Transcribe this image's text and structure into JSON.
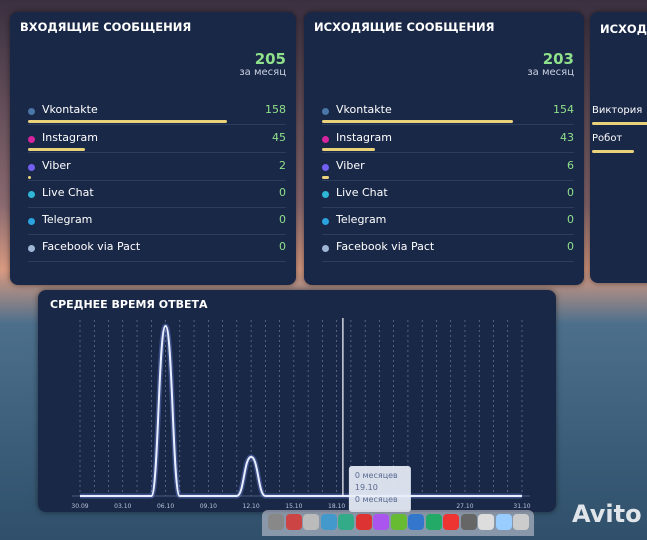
{
  "panels": [
    {
      "title": "ВХОДЯЩИЕ СООБЩЕНИЯ",
      "total": 205,
      "total_label": "за месяц",
      "channels": [
        {
          "name": "Vkontakte",
          "value": 158,
          "color": "#4a76a8"
        },
        {
          "name": "Instagram",
          "value": 45,
          "color": "#d6249f"
        },
        {
          "name": "Viber",
          "value": 2,
          "color": "#7360f2"
        },
        {
          "name": "Live Chat",
          "value": 0,
          "color": "#2fb5d6"
        },
        {
          "name": "Telegram",
          "value": 0,
          "color": "#2aa3de"
        },
        {
          "name": "Facebook via Pact",
          "value": 0,
          "color": "#9fb6d6"
        }
      ]
    },
    {
      "title": "ИСХОДЯЩИЕ СООБЩЕНИЯ",
      "total": 203,
      "total_label": "за месяц",
      "channels": [
        {
          "name": "Vkontakte",
          "value": 154,
          "color": "#4a76a8"
        },
        {
          "name": "Instagram",
          "value": 43,
          "color": "#d6249f"
        },
        {
          "name": "Viber",
          "value": 6,
          "color": "#7360f2"
        },
        {
          "name": "Live Chat",
          "value": 0,
          "color": "#2fb5d6"
        },
        {
          "name": "Telegram",
          "value": 0,
          "color": "#2aa3de"
        },
        {
          "name": "Facebook via Pact",
          "value": 0,
          "color": "#9fb6d6"
        }
      ]
    }
  ],
  "agents": {
    "title": "ИСХОДЯ",
    "rows": [
      "Виктория",
      "Робот"
    ]
  },
  "response_chart": {
    "title": "СРЕДНЕЕ ВРЕМЯ ОТВЕТА",
    "categories": [
      "30.09",
      null,
      null,
      "03.10",
      null,
      null,
      "06.10",
      null,
      null,
      "09.10",
      null,
      null,
      "12.10",
      null,
      null,
      "15.10",
      null,
      null,
      "18.10",
      null,
      null,
      null,
      null,
      null,
      null,
      null,
      null,
      "27.10",
      null,
      null,
      null,
      "31.10"
    ],
    "values": [
      0,
      0,
      0,
      0,
      0,
      0,
      100,
      0,
      0,
      0,
      0,
      0,
      23,
      0,
      0,
      0,
      0,
      0,
      0,
      0,
      0,
      0,
      0,
      0,
      0,
      0,
      0,
      0,
      0,
      0,
      0,
      0
    ],
    "tooltip": [
      "0 месяцев",
      "19.10",
      "0 месяцев"
    ]
  },
  "watermark": "Avito"
}
